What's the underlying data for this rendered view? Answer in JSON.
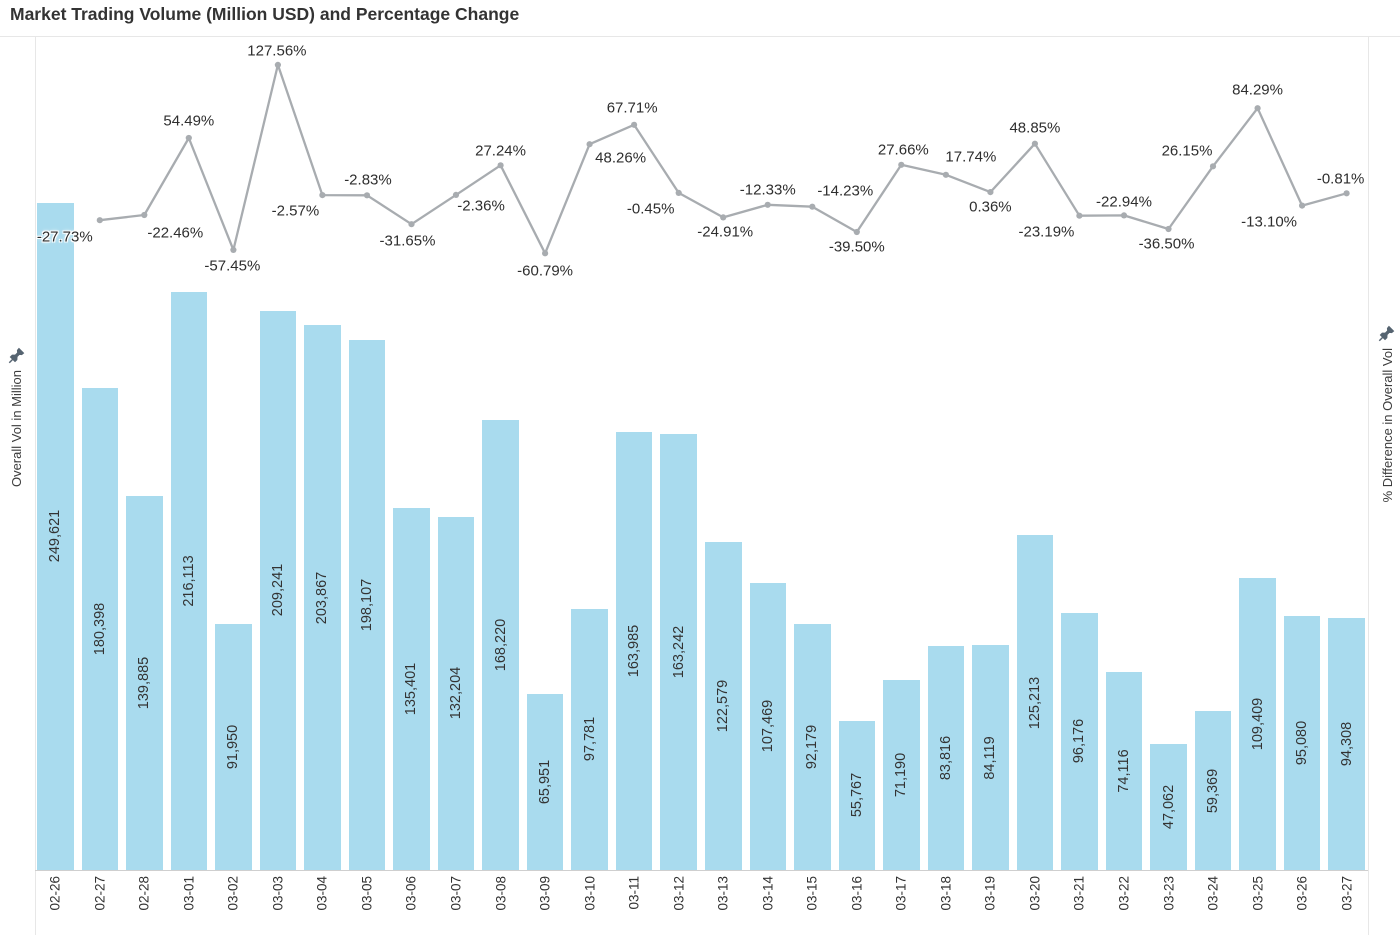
{
  "title": "Market Trading Volume (Million USD) and Percentage Change",
  "left_axis": {
    "label": "Overall Vol in Million",
    "icon": "pin-icon"
  },
  "right_axis": {
    "label": "% Difference in Overall Vol",
    "icon": "pin-icon"
  },
  "colors": {
    "bar_fill": "#a9dbee",
    "line": "#a8acb0",
    "text": "#333333",
    "border": "#e7e7e7",
    "axis_line": "#cfcfcf",
    "pin": "#566471",
    "background": "#ffffff"
  },
  "chart_data": {
    "type": "combo (bar + line, dual axis)",
    "title": "Market Trading Volume (Million USD) and Percentage Change",
    "categories": [
      "02-26",
      "02-27",
      "02-28",
      "03-01",
      "03-02",
      "03-03",
      "03-04",
      "03-05",
      "03-06",
      "03-07",
      "03-08",
      "03-09",
      "03-10",
      "03-11",
      "03-12",
      "03-13",
      "03-14",
      "03-15",
      "03-16",
      "03-17",
      "03-18",
      "03-19",
      "03-20",
      "03-21",
      "03-22",
      "03-23",
      "03-24",
      "03-25",
      "03-26",
      "03-27"
    ],
    "series": [
      {
        "name": "Overall Vol in Million",
        "type": "bar",
        "values": [
          249621,
          180398,
          139885,
          216113,
          91950,
          209241,
          203867,
          198107,
          135401,
          132204,
          168220,
          65951,
          97781,
          163985,
          163242,
          122579,
          107469,
          92179,
          55767,
          71190,
          83816,
          84119,
          125213,
          96176,
          74116,
          47062,
          59369,
          109409,
          95080,
          94308
        ],
        "labels": [
          "249,621",
          "180,398",
          "139,885",
          "216,113",
          "91,950",
          "209,241",
          "203,867",
          "198,107",
          "135,401",
          "132,204",
          "168,220",
          "65,951",
          "97,781",
          "163,985",
          "163,242",
          "122,579",
          "107,469",
          "92,179",
          "55,767",
          "71,190",
          "83,816",
          "84,119",
          "125,213",
          "96,176",
          "74,116",
          "47,062",
          "59,369",
          "109,409",
          "95,080",
          "94,308"
        ]
      },
      {
        "name": "% Difference in Overall Vol",
        "type": "line",
        "values": [
          null,
          -27.73,
          -22.46,
          54.49,
          -57.45,
          127.56,
          -2.57,
          -2.83,
          -31.65,
          -2.36,
          27.24,
          -60.79,
          48.26,
          67.71,
          -0.45,
          -24.91,
          -12.33,
          -14.23,
          -39.5,
          27.66,
          17.74,
          0.36,
          48.85,
          -23.19,
          -22.94,
          -36.5,
          26.15,
          84.29,
          -13.1,
          -0.81
        ],
        "labels": [
          null,
          "-27.73%",
          "-22.46%",
          "54.49%",
          "-57.45%",
          "127.56%",
          "-2.57%",
          "-2.83%",
          "-31.65%",
          "-2.36%",
          "27.24%",
          "-60.79%",
          "48.26%",
          "67.71%",
          "-0.45%",
          "-24.91%",
          "-12.33%",
          "-14.23%",
          "-39.50%",
          "27.66%",
          "17.74%",
          "0.36%",
          "48.85%",
          "-23.19%",
          "-22.94%",
          "-36.50%",
          "26.15%",
          "84.29%",
          "-13.10%",
          "-0.81%"
        ],
        "label_offsets": [
          null,
          [
            -35,
            17
          ],
          [
            31,
            18
          ],
          [
            0,
            -17
          ],
          [
            -1,
            16
          ],
          [
            -1,
            -14
          ],
          [
            -27,
            16
          ],
          [
            1,
            -15
          ],
          [
            -4,
            17
          ],
          [
            25,
            11
          ],
          [
            0,
            -14
          ],
          [
            0,
            18
          ],
          [
            31,
            14
          ],
          [
            -2,
            -17
          ],
          [
            -28,
            16
          ],
          [
            2,
            15
          ],
          [
            0,
            -15
          ],
          [
            33,
            -16
          ],
          [
            0,
            15
          ],
          [
            2,
            -15
          ],
          [
            25,
            -18
          ],
          [
            0,
            15
          ],
          [
            0,
            -16
          ],
          [
            -33,
            16
          ],
          [
            0,
            -13
          ],
          [
            -2,
            15
          ],
          [
            -26,
            -15
          ],
          [
            0,
            -18
          ],
          [
            -33,
            16
          ],
          [
            -6,
            -14
          ]
        ]
      }
    ],
    "xlabel": "",
    "left_ylabel": "Overall Vol in Million",
    "right_ylabel": "% Difference in Overall Vol",
    "left_ylim": [
      0,
      312000
    ],
    "right_ylim": [
      -677.5,
      156.5
    ],
    "grid": "off",
    "legend": "none",
    "bar_value_label_position": "inside-center, rotated 90",
    "x_tick_label_rotation": 90
  }
}
